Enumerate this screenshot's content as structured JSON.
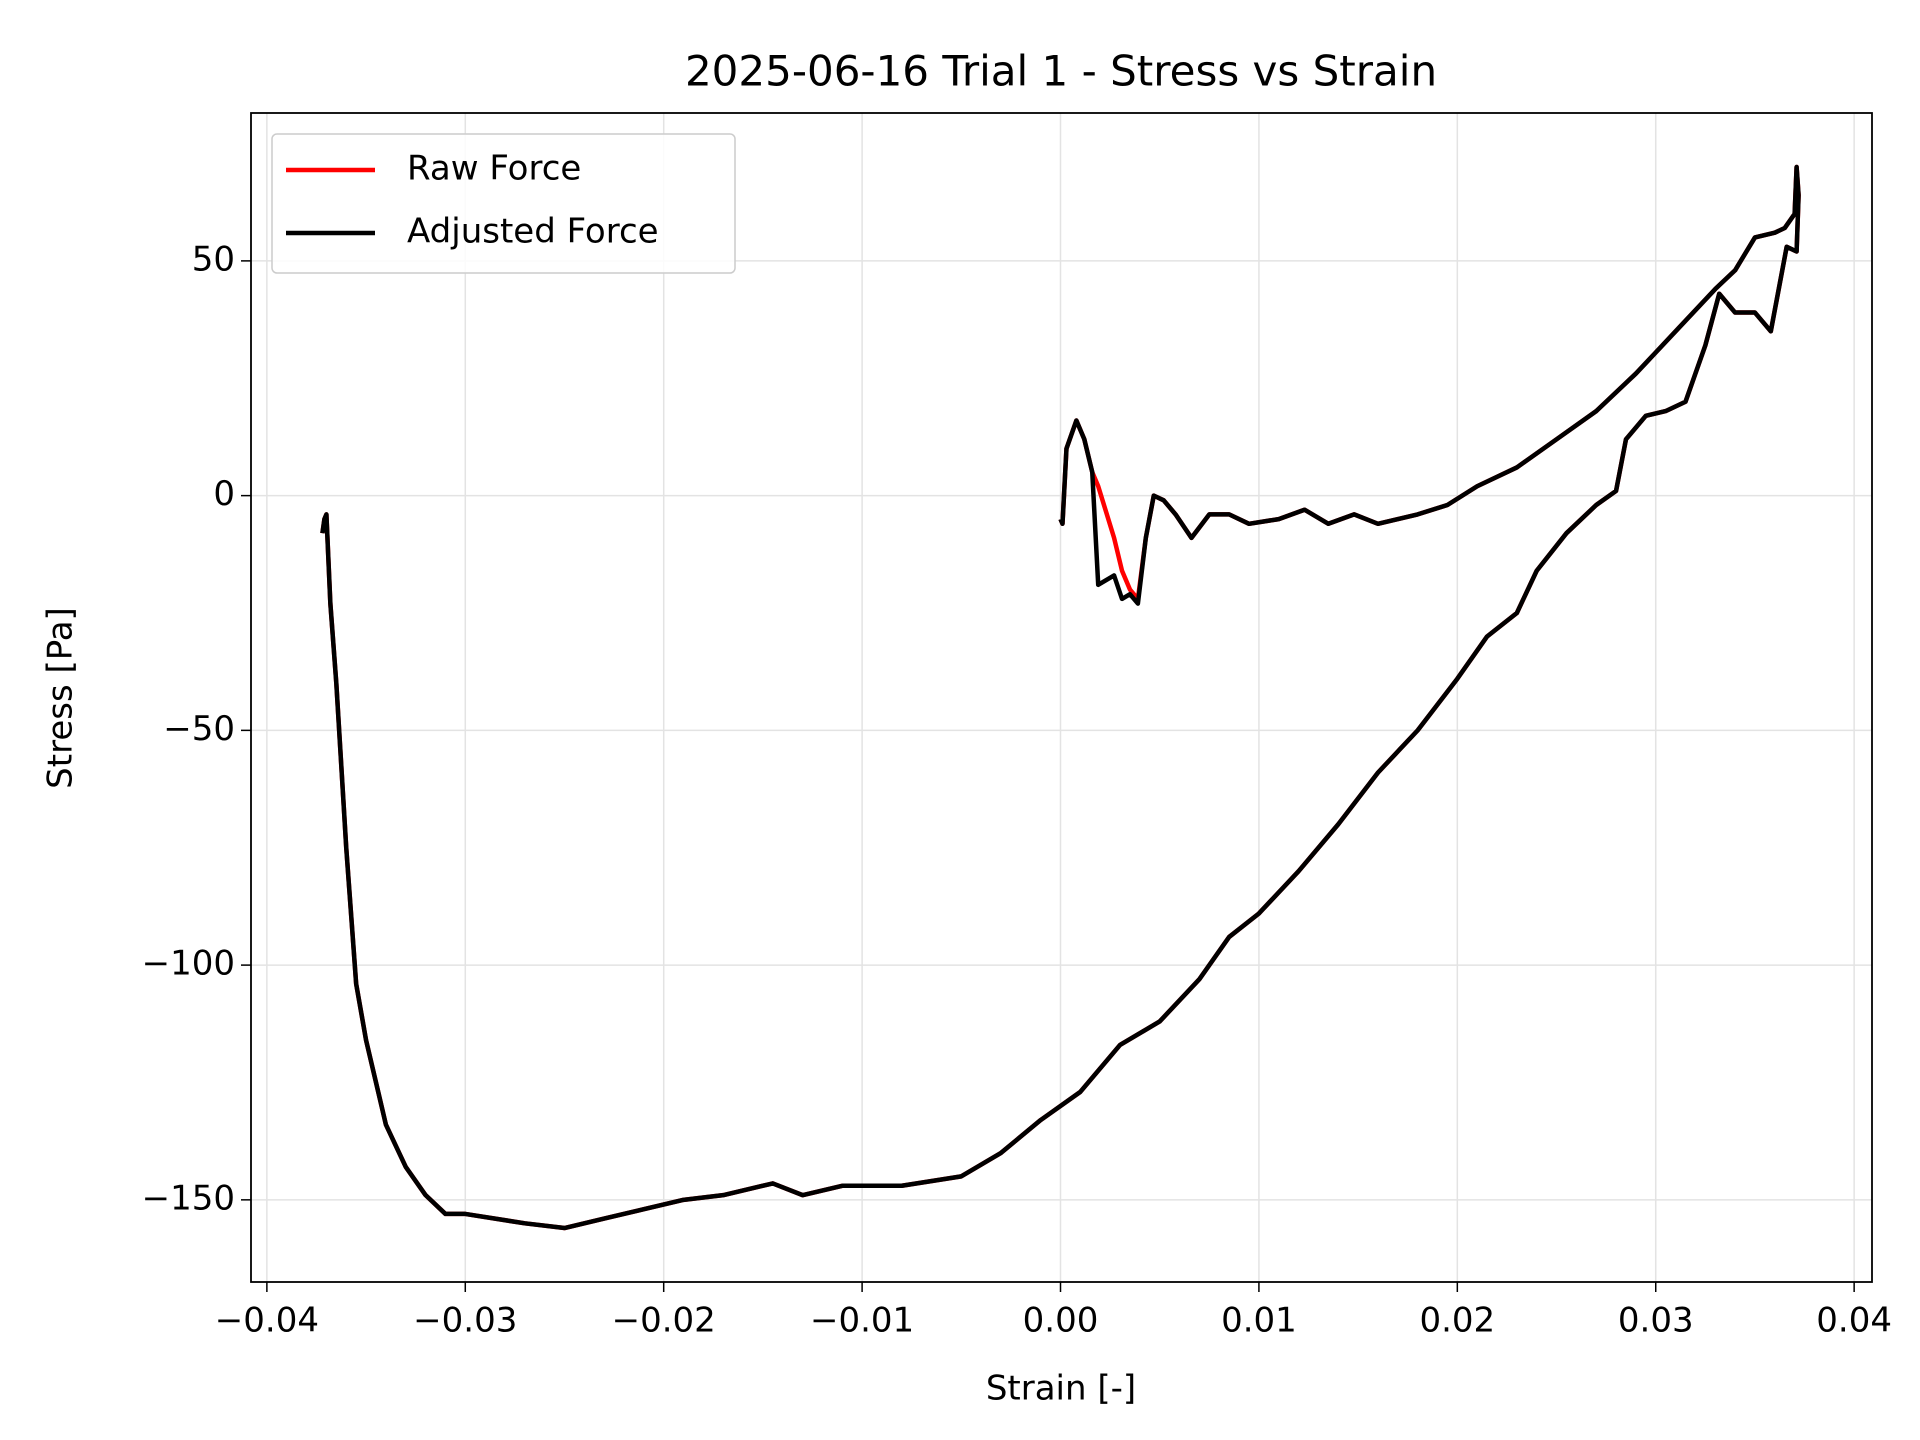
{
  "chart_data": {
    "type": "line",
    "title": "2025-06-16 Trial 1 - Stress vs Strain",
    "x_label": "Strain [-]",
    "y_label": "Stress [Pa]",
    "x": [
      0,
      0.0001,
      0.0003,
      0.0008,
      0.0012,
      0.0016,
      0.0019,
      0.0027,
      0.0031,
      0.0035,
      0.0039,
      0.0043,
      0.0047,
      0.0052,
      0.0058,
      0.0066,
      0.0075,
      0.0085,
      0.0095,
      0.011,
      0.0123,
      0.0135,
      0.0148,
      0.016,
      0.018,
      0.0195,
      0.021,
      0.023,
      0.025,
      0.027,
      0.029,
      0.031,
      0.033,
      0.034,
      0.035,
      0.036,
      0.0365,
      0.037,
      0.0371,
      0.0372,
      0.0371,
      0.0366,
      0.0358,
      0.035,
      0.034,
      0.0332,
      0.0325,
      0.0315,
      0.0305,
      0.0295,
      0.0285,
      0.028,
      0.027,
      0.0255,
      0.024,
      0.023,
      0.0215,
      0.02,
      0.018,
      0.016,
      0.014,
      0.012,
      0.01,
      0.0085,
      0.007,
      0.005,
      0.003,
      0.001,
      -0.001,
      -0.003,
      -0.005,
      -0.008,
      -0.011,
      -0.013,
      -0.0145,
      -0.017,
      -0.019,
      -0.021,
      -0.023,
      -0.025,
      -0.027,
      -0.03,
      -0.031,
      -0.032,
      -0.033,
      -0.034,
      -0.035,
      -0.0355,
      -0.036,
      -0.0365,
      -0.0368,
      -0.037,
      -0.0371,
      -0.0372
    ],
    "series": [
      {
        "name": "Raw Force",
        "color": "#ff0000",
        "values": [
          -5,
          -6,
          10,
          16,
          12,
          5,
          2,
          -9,
          -16,
          -20,
          -22,
          -9,
          0,
          -1,
          -4,
          -9,
          -4,
          -4,
          -6,
          -5,
          -3,
          -6,
          -4,
          -6,
          -4,
          -2,
          2,
          6,
          12,
          18,
          26,
          35,
          44,
          48,
          55,
          56,
          57,
          60,
          70,
          64,
          52,
          53,
          35,
          39,
          39,
          43,
          32,
          20,
          18,
          17,
          12,
          1,
          -2,
          -8,
          -16,
          -25,
          -30,
          -39,
          -50,
          -59,
          -70,
          -80,
          -89,
          -94,
          -103,
          -112,
          -117,
          -127,
          -133,
          -140,
          -145,
          -147,
          -147,
          -149,
          -146.5,
          -149,
          -150,
          -152,
          -154,
          -156,
          -155,
          -153,
          -153,
          -149,
          -143,
          -134,
          -116,
          -104,
          -75,
          -40,
          -23,
          -4,
          -5,
          -8
        ]
      },
      {
        "name": "Adjusted Force",
        "color": "#000000",
        "values": [
          -5,
          -6,
          10,
          16,
          12,
          5,
          -19,
          -17,
          -22,
          -21,
          -23,
          -9,
          0,
          -1,
          -4,
          -9,
          -4,
          -4,
          -6,
          -5,
          -3,
          -6,
          -4,
          -6,
          -4,
          -2,
          2,
          6,
          12,
          18,
          26,
          35,
          44,
          48,
          55,
          56,
          57,
          60,
          70,
          64,
          52,
          53,
          35,
          39,
          39,
          43,
          32,
          20,
          18,
          17,
          12,
          1,
          -2,
          -8,
          -16,
          -25,
          -30,
          -39,
          -50,
          -59,
          -70,
          -80,
          -89,
          -94,
          -103,
          -112,
          -117,
          -127,
          -133,
          -140,
          -145,
          -147,
          -147,
          -149,
          -146.5,
          -149,
          -150,
          -152,
          -154,
          -156,
          -155,
          -153,
          -153,
          -149,
          -143,
          -134,
          -116,
          -104,
          -75,
          -40,
          -23,
          -4,
          -5,
          -8
        ]
      }
    ],
    "xlim": [
      -0.0408,
      0.0409
    ],
    "ylim": [
      -167.5,
      81.5
    ],
    "xticks": [
      {
        "value": -0.04,
        "label": "−0.04"
      },
      {
        "value": -0.03,
        "label": "−0.03"
      },
      {
        "value": -0.02,
        "label": "−0.02"
      },
      {
        "value": -0.01,
        "label": "−0.01"
      },
      {
        "value": 0,
        "label": "0.00"
      },
      0.01,
      0.02,
      0.03,
      0.04
    ],
    "yticks": [
      {
        "value": -150,
        "label": "−150"
      },
      {
        "value": -100,
        "label": "−100"
      },
      {
        "value": -50,
        "label": "−50"
      },
      0,
      50
    ],
    "grid": true,
    "legend": "upper left"
  }
}
